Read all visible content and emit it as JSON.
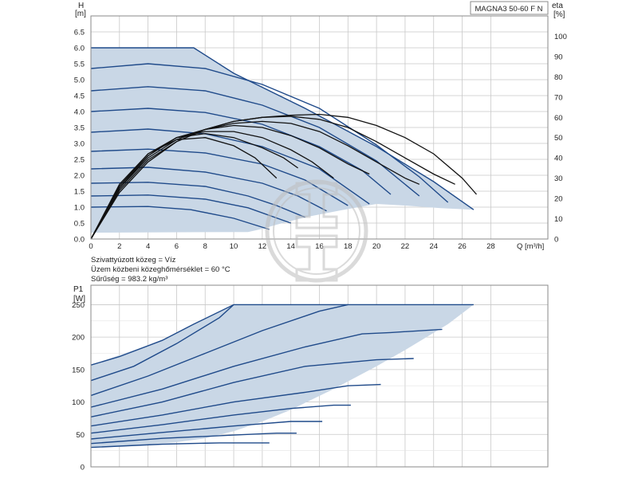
{
  "model": "MAGNA3 50-60 F N",
  "colors": {
    "envelope_fill": "#c9d7e6",
    "curve": "#1f4a8a",
    "eta": "#111111",
    "grid": "#c8c8c8",
    "watermark": "#bdbdbd"
  },
  "medium_info": [
    "Szivattyúzott közeg = Víz",
    "Üzem közbeni közeghőmérséklet = 60 °C",
    "Sűrűség = 983.2 kg/m³"
  ],
  "chart_data": [
    {
      "type": "line",
      "id": "head",
      "ylabel": [
        "H",
        "[m]"
      ],
      "y2label": [
        "eta",
        "[%]"
      ],
      "xlabel": "Q [m³/h]",
      "xlim": [
        0,
        32
      ],
      "ylim": [
        0,
        7.0
      ],
      "y2lim": [
        0,
        110
      ],
      "x_ticks": [
        0,
        2,
        4,
        6,
        8,
        10,
        12,
        14,
        16,
        18,
        20,
        22,
        24,
        26,
        28
      ],
      "y_ticks": [
        "0.0",
        "0.5",
        "1.0",
        "1.5",
        "2.0",
        "2.5",
        "3.0",
        "3.5",
        "4.0",
        "4.5",
        "5.0",
        "5.5",
        "6.0",
        "6.5"
      ],
      "y2_ticks": [
        "0",
        "10",
        "20",
        "30",
        "40",
        "50",
        "60",
        "70",
        "80",
        "90",
        "100"
      ],
      "grid": true,
      "envelope": [
        [
          0,
          6.0
        ],
        [
          7.2,
          6.0
        ],
        [
          10,
          5.2
        ],
        [
          15,
          4.1
        ],
        [
          20,
          2.9
        ],
        [
          24,
          1.8
        ],
        [
          26.8,
          0.92
        ],
        [
          24.5,
          0.97
        ],
        [
          22,
          1.05
        ],
        [
          20,
          1.1
        ],
        [
          17.5,
          0.9
        ],
        [
          15.2,
          0.7
        ],
        [
          13,
          0.45
        ],
        [
          12,
          0.32
        ],
        [
          11,
          0.22
        ],
        [
          0,
          0.2
        ]
      ],
      "head_curves": [
        {
          "max_q": 26.8,
          "points": [
            [
              0,
              6.0
            ],
            [
              7.2,
              6.0
            ],
            [
              10,
              5.2
            ],
            [
              15,
              4.1
            ],
            [
              20,
              2.9
            ],
            [
              24,
              1.8
            ],
            [
              26.8,
              0.92
            ]
          ]
        },
        {
          "max_q": 25.0,
          "points": [
            [
              0,
              5.35
            ],
            [
              4,
              5.5
            ],
            [
              8,
              5.35
            ],
            [
              12,
              4.85
            ],
            [
              16,
              4.1
            ],
            [
              20,
              2.95
            ],
            [
              23,
              1.95
            ],
            [
              25,
              1.15
            ]
          ]
        },
        {
          "max_q": 23.0,
          "points": [
            [
              0,
              4.65
            ],
            [
              4,
              4.78
            ],
            [
              8,
              4.65
            ],
            [
              12,
              4.2
            ],
            [
              16,
              3.5
            ],
            [
              20,
              2.45
            ],
            [
              23,
              1.35
            ]
          ]
        },
        {
          "max_q": 21.0,
          "points": [
            [
              0,
              4.0
            ],
            [
              4,
              4.1
            ],
            [
              8,
              3.97
            ],
            [
              12,
              3.6
            ],
            [
              16,
              2.9
            ],
            [
              19,
              2.15
            ],
            [
              21,
              1.4
            ]
          ]
        },
        {
          "max_q": 19.5,
          "points": [
            [
              0,
              3.35
            ],
            [
              4,
              3.45
            ],
            [
              8,
              3.3
            ],
            [
              12,
              2.9
            ],
            [
              16,
              2.2
            ],
            [
              19.5,
              1.1
            ]
          ]
        },
        {
          "max_q": 18.0,
          "points": [
            [
              0,
              2.75
            ],
            [
              4,
              2.82
            ],
            [
              8,
              2.7
            ],
            [
              12,
              2.35
            ],
            [
              15,
              1.85
            ],
            [
              18,
              1.05
            ]
          ]
        },
        {
          "max_q": 16.5,
          "points": [
            [
              0,
              2.2
            ],
            [
              4,
              2.25
            ],
            [
              8,
              2.1
            ],
            [
              12,
              1.75
            ],
            [
              14.5,
              1.35
            ],
            [
              16.5,
              0.88
            ]
          ]
        },
        {
          "max_q": 15.0,
          "points": [
            [
              0,
              1.75
            ],
            [
              4,
              1.78
            ],
            [
              8,
              1.65
            ],
            [
              11,
              1.35
            ],
            [
              13,
              1.05
            ],
            [
              15,
              0.68
            ]
          ]
        },
        {
          "max_q": 14.0,
          "points": [
            [
              0,
              1.35
            ],
            [
              4,
              1.38
            ],
            [
              8,
              1.25
            ],
            [
              11,
              0.98
            ],
            [
              14,
              0.5
            ]
          ]
        },
        {
          "max_q": 12.5,
          "points": [
            [
              0,
              1.0
            ],
            [
              4,
              1.02
            ],
            [
              7,
              0.92
            ],
            [
              10,
              0.65
            ],
            [
              12.5,
              0.3
            ]
          ]
        }
      ],
      "eta_curves": [
        {
          "points": [
            [
              0,
              0
            ],
            [
              2,
              23
            ],
            [
              4,
              38
            ],
            [
              6,
              48
            ],
            [
              8,
              54
            ],
            [
              10,
              58
            ],
            [
              12,
              60
            ],
            [
              14,
              61
            ],
            [
              16,
              61.5
            ],
            [
              18,
              60
            ],
            [
              20,
              56
            ],
            [
              22,
              50
            ],
            [
              24,
              42
            ],
            [
              26,
              30
            ],
            [
              27,
              22
            ]
          ]
        },
        {
          "points": [
            [
              0,
              0
            ],
            [
              2,
              24
            ],
            [
              4,
              39
            ],
            [
              6,
              48
            ],
            [
              8,
              54
            ],
            [
              10,
              58
            ],
            [
              12,
              60
            ],
            [
              14,
              60.5
            ],
            [
              16,
              59
            ],
            [
              18,
              55
            ],
            [
              20,
              48
            ],
            [
              22,
              40
            ],
            [
              24,
              32
            ],
            [
              25.5,
              27
            ]
          ]
        },
        {
          "points": [
            [
              0,
              0
            ],
            [
              2,
              25
            ],
            [
              4,
              40
            ],
            [
              6,
              49
            ],
            [
              8,
              54
            ],
            [
              10,
              57
            ],
            [
              12,
              58
            ],
            [
              14,
              57
            ],
            [
              16,
              53
            ],
            [
              18,
              46
            ],
            [
              20,
              38
            ],
            [
              22,
              30
            ],
            [
              23,
              27
            ]
          ]
        },
        {
          "points": [
            [
              0,
              0
            ],
            [
              2,
              25
            ],
            [
              4,
              41
            ],
            [
              6,
              50
            ],
            [
              8,
              54
            ],
            [
              10,
              56
            ],
            [
              12,
              55
            ],
            [
              14,
              51
            ],
            [
              16,
              45
            ],
            [
              18,
              37
            ],
            [
              19.5,
              32
            ]
          ]
        },
        {
          "points": [
            [
              0,
              0
            ],
            [
              2,
              26
            ],
            [
              4,
              41
            ],
            [
              6,
              50
            ],
            [
              8,
              53
            ],
            [
              10,
              53
            ],
            [
              12,
              50
            ],
            [
              14,
              44
            ],
            [
              15.5,
              38
            ],
            [
              17,
              30
            ]
          ]
        },
        {
          "points": [
            [
              0,
              0
            ],
            [
              2,
              26
            ],
            [
              4,
              42
            ],
            [
              6,
              50
            ],
            [
              8,
              52
            ],
            [
              10,
              50
            ],
            [
              12,
              45
            ],
            [
              13.5,
              40
            ],
            [
              14.5,
              35
            ]
          ]
        },
        {
          "points": [
            [
              0,
              0
            ],
            [
              2,
              27
            ],
            [
              4,
              42
            ],
            [
              6,
              49
            ],
            [
              8,
              50
            ],
            [
              10,
              46
            ],
            [
              11.5,
              40
            ],
            [
              13,
              30
            ]
          ]
        }
      ]
    },
    {
      "type": "line",
      "id": "power",
      "ylabel": [
        "P1",
        "[W]"
      ],
      "xlim": [
        0,
        32
      ],
      "ylim": [
        0,
        280
      ],
      "y_ticks": [
        "0",
        "50",
        "100",
        "150",
        "200",
        "250"
      ],
      "grid": true,
      "envelope": [
        [
          0,
          157
        ],
        [
          5,
          195
        ],
        [
          10,
          250
        ],
        [
          26.8,
          250
        ],
        [
          25,
          220
        ],
        [
          22,
          180
        ],
        [
          20,
          155
        ],
        [
          17,
          120
        ],
        [
          14,
          88
        ],
        [
          12,
          70
        ],
        [
          10,
          55
        ],
        [
          8,
          44
        ],
        [
          6,
          38
        ],
        [
          4,
          35
        ],
        [
          2,
          32
        ],
        [
          0,
          30
        ]
      ],
      "power_curves": [
        {
          "points": [
            [
              0,
              157
            ],
            [
              2,
              170
            ],
            [
              5,
              195
            ],
            [
              7.2,
              220
            ],
            [
              10,
              250
            ],
            [
              26.8,
              250
            ]
          ]
        },
        {
          "points": [
            [
              0,
              133
            ],
            [
              3,
              155
            ],
            [
              6,
              190
            ],
            [
              9,
              230
            ],
            [
              10,
              250
            ]
          ]
        },
        {
          "points": [
            [
              0,
              110
            ],
            [
              4,
              140
            ],
            [
              8,
              175
            ],
            [
              12,
              210
            ],
            [
              16,
              240
            ],
            [
              18,
              250
            ]
          ]
        },
        {
          "points": [
            [
              0,
              92
            ],
            [
              5,
              120
            ],
            [
              10,
              155
            ],
            [
              15,
              185
            ],
            [
              19,
              205
            ],
            [
              21,
              207
            ],
            [
              24.6,
              212
            ]
          ]
        },
        {
          "points": [
            [
              0,
              77
            ],
            [
              5,
              100
            ],
            [
              10,
              130
            ],
            [
              15,
              155
            ],
            [
              20,
              165
            ],
            [
              22.6,
              167
            ]
          ]
        },
        {
          "points": [
            [
              0,
              63
            ],
            [
              5,
              80
            ],
            [
              10,
              100
            ],
            [
              15,
              115
            ],
            [
              18,
              125
            ],
            [
              20.3,
              127
            ]
          ]
        },
        {
          "points": [
            [
              0,
              52
            ],
            [
              5,
              65
            ],
            [
              10,
              80
            ],
            [
              14,
              90
            ],
            [
              17,
              95
            ],
            [
              18.2,
              95
            ]
          ]
        },
        {
          "points": [
            [
              0,
              43
            ],
            [
              5,
              53
            ],
            [
              10,
              63
            ],
            [
              14,
              70
            ],
            [
              16.2,
              70
            ]
          ]
        },
        {
          "points": [
            [
              0,
              36
            ],
            [
              5,
              44
            ],
            [
              10,
              49
            ],
            [
              13,
              52
            ],
            [
              14.4,
              52
            ]
          ]
        },
        {
          "points": [
            [
              0,
              30
            ],
            [
              5,
              35
            ],
            [
              9,
              37
            ],
            [
              12.5,
              37
            ]
          ]
        }
      ]
    }
  ]
}
